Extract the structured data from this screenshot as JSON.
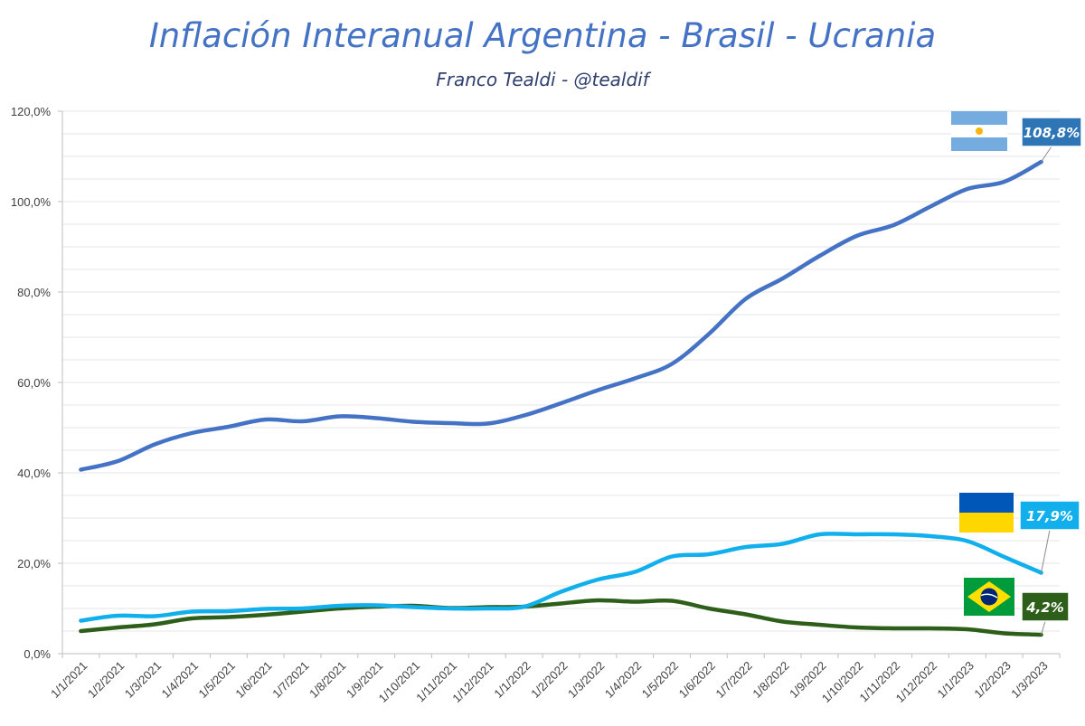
{
  "title": "Inflación Interanual Argentina - Brasil - Ucrania",
  "subtitle": "Franco Tealdi - @tealdif",
  "chart_data": {
    "type": "line",
    "title": "Inflación Interanual Argentina - Brasil - Ucrania",
    "subtitle": "Franco Tealdi - @tealdif",
    "xlabel": "",
    "ylabel": "",
    "ylim": [
      0,
      120
    ],
    "y_ticks": [
      "0,0%",
      "20,0%",
      "40,0%",
      "60,0%",
      "80,0%",
      "100,0%",
      "120,0%"
    ],
    "grid": true,
    "categories": [
      "1/1/2021",
      "1/2/2021",
      "1/3/2021",
      "1/4/2021",
      "1/5/2021",
      "1/6/2021",
      "1/7/2021",
      "1/8/2021",
      "1/9/2021",
      "1/10/2021",
      "1/11/2021",
      "1/12/2021",
      "1/1/2022",
      "1/2/2022",
      "1/3/2022",
      "1/4/2022",
      "1/5/2022",
      "1/6/2022",
      "1/7/2022",
      "1/8/2022",
      "1/9/2022",
      "1/10/2022",
      "1/11/2022",
      "1/12/2022",
      "1/1/2023",
      "1/2/2023",
      "1/3/2023"
    ],
    "series": [
      {
        "name": "Argentina",
        "color": "#4472C4",
        "values": [
          40.7,
          42.6,
          46.3,
          48.8,
          50.2,
          51.8,
          51.4,
          52.5,
          52.1,
          51.3,
          51.0,
          50.9,
          52.7,
          55.4,
          58.3,
          60.9,
          64.1,
          70.7,
          78.5,
          83.0,
          88.0,
          92.4,
          94.8,
          98.9,
          102.8,
          104.4,
          108.8
        ],
        "end_label": "108,8%",
        "end_label_color": "#2E75B6",
        "flag": "Argentina flag"
      },
      {
        "name": "Ucrania",
        "color": "#11B0EC",
        "values": [
          7.3,
          8.4,
          8.3,
          9.3,
          9.4,
          9.9,
          10.0,
          10.6,
          10.7,
          10.3,
          10.0,
          10.0,
          10.4,
          13.7,
          16.4,
          18.1,
          21.5,
          22.0,
          23.6,
          24.3,
          26.4,
          26.4,
          26.4,
          26.0,
          24.9,
          21.4,
          17.9
        ],
        "end_label": "17,9%",
        "end_label_color": "#11B0EC",
        "flag": "Ukraine flag"
      },
      {
        "name": "Brasil",
        "color": "#2E5F1A",
        "values": [
          5.0,
          5.8,
          6.5,
          7.8,
          8.1,
          8.6,
          9.3,
          10.0,
          10.4,
          10.6,
          10.1,
          10.3,
          10.4,
          11.1,
          11.8,
          11.5,
          11.7,
          10.0,
          8.7,
          7.1,
          6.4,
          5.8,
          5.6,
          5.6,
          5.4,
          4.5,
          4.2
        ],
        "end_label": "4,2%",
        "end_label_color": "#2E5F1A",
        "flag": "Brazil flag"
      }
    ]
  }
}
